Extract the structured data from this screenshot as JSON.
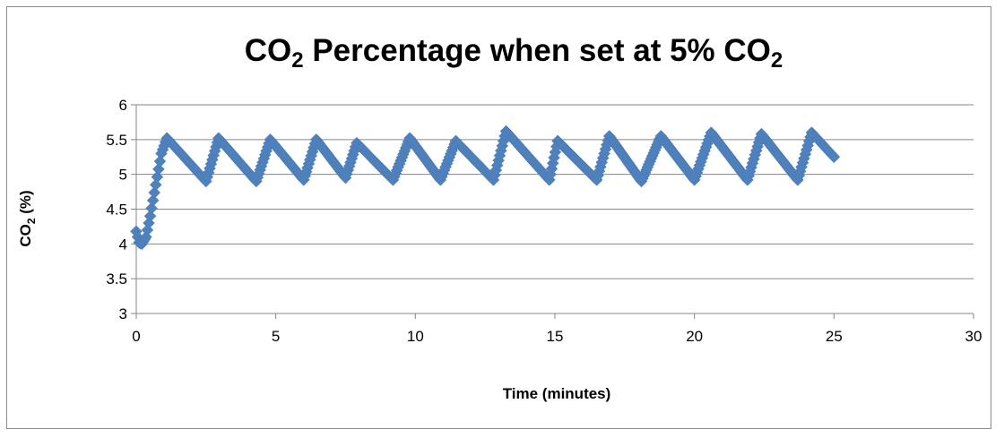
{
  "chart_data": {
    "type": "scatter",
    "title": {
      "prefix": "CO",
      "sub": "2",
      "middle": " Percentage when set at 5% CO",
      "sub2": "2"
    },
    "xlabel": "Time (minutes)",
    "ylabel": {
      "prefix": "CO",
      "sub": "2",
      "suffix": " (%)"
    },
    "xlim": [
      0,
      30
    ],
    "ylim": [
      3,
      6
    ],
    "xticks": [
      "0",
      "5",
      "10",
      "15",
      "20",
      "25",
      "30"
    ],
    "yticks": [
      "3",
      "3.5",
      "4",
      "4.5",
      "5",
      "5.5",
      "6"
    ],
    "grid": "horizontal",
    "legend": "none",
    "marker": "diamond",
    "colors": {
      "series": "#4f81bd",
      "grid": "#868686",
      "axis": "#868686"
    },
    "series": [
      {
        "description_points": [
          [
            0.0,
            4.18
          ],
          [
            0.1,
            4.02
          ],
          [
            0.2,
            4.0
          ],
          [
            0.35,
            4.1
          ],
          [
            0.5,
            4.4
          ],
          [
            0.7,
            4.85
          ],
          [
            0.9,
            5.3
          ],
          [
            1.1,
            5.52
          ],
          [
            2.5,
            4.9
          ],
          [
            2.95,
            5.52
          ],
          [
            4.3,
            4.9
          ],
          [
            4.8,
            5.5
          ],
          [
            6.0,
            4.92
          ],
          [
            6.45,
            5.5
          ],
          [
            7.5,
            4.95
          ],
          [
            7.9,
            5.45
          ],
          [
            9.2,
            4.92
          ],
          [
            9.8,
            5.52
          ],
          [
            10.9,
            4.92
          ],
          [
            11.45,
            5.48
          ],
          [
            12.8,
            4.92
          ],
          [
            13.25,
            5.62
          ],
          [
            14.8,
            4.92
          ],
          [
            15.1,
            5.48
          ],
          [
            16.5,
            4.92
          ],
          [
            16.95,
            5.55
          ],
          [
            18.1,
            4.9
          ],
          [
            18.8,
            5.55
          ],
          [
            20.0,
            4.92
          ],
          [
            20.6,
            5.6
          ],
          [
            21.9,
            4.92
          ],
          [
            22.4,
            5.58
          ],
          [
            23.7,
            4.92
          ],
          [
            24.2,
            5.6
          ],
          [
            25.0,
            5.25
          ]
        ]
      }
    ]
  }
}
